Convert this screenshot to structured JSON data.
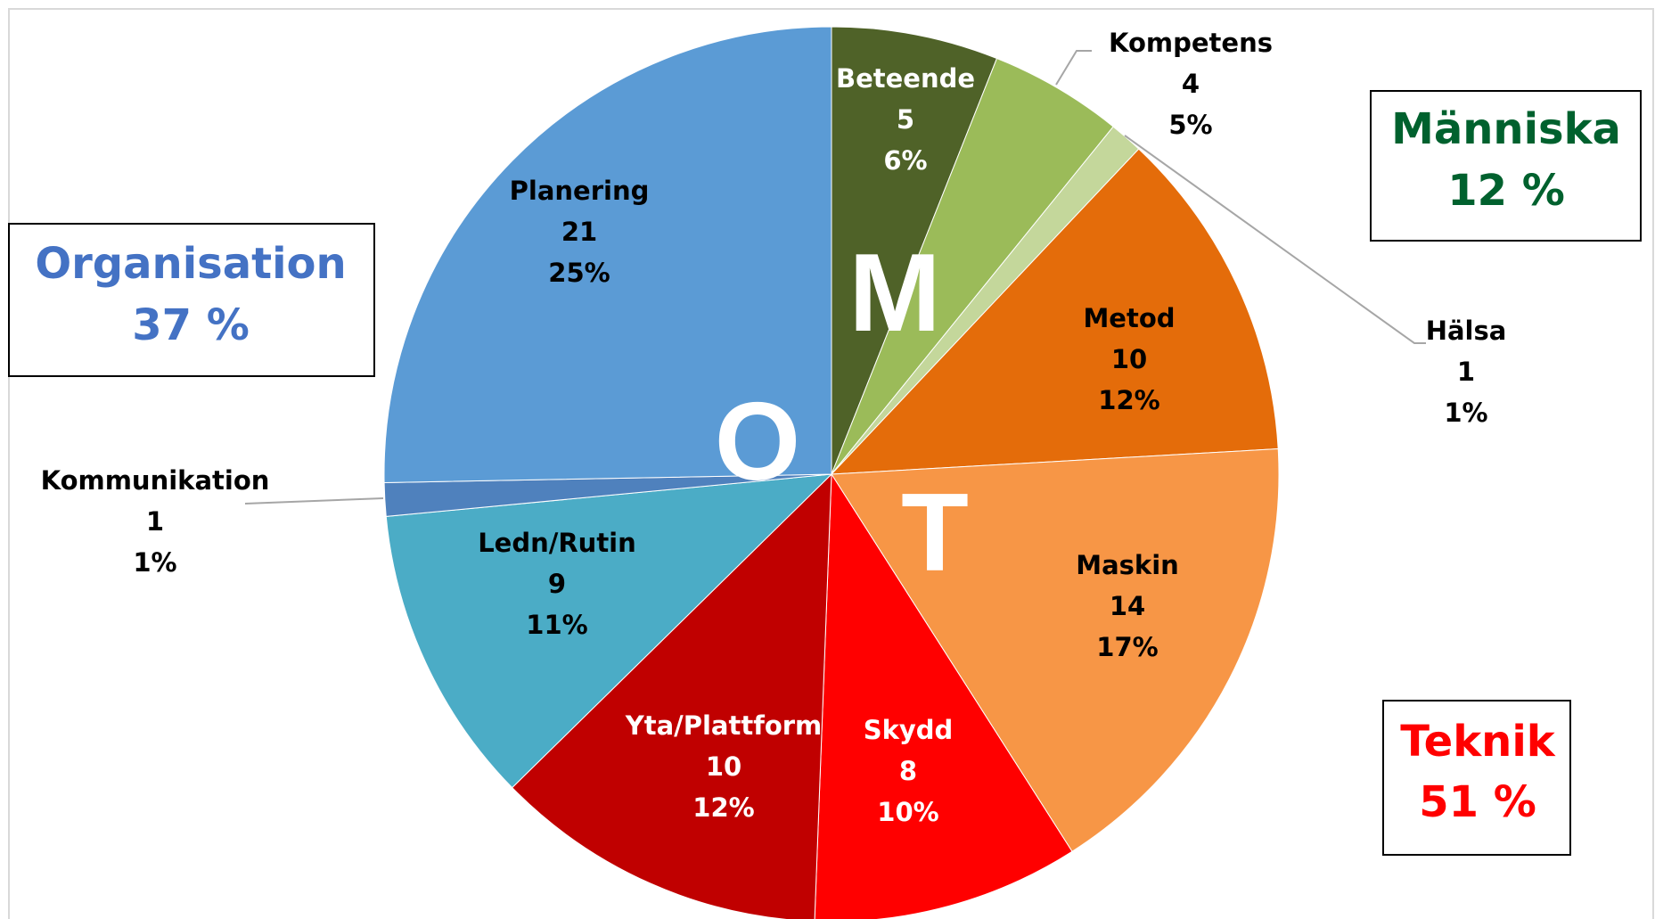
{
  "chart_data": {
    "type": "pie",
    "categories": [
      "Beteende",
      "Kompetens",
      "Hälsa",
      "Metod",
      "Maskin",
      "Skydd",
      "Yta/Plattform",
      "Ledn/Rutin",
      "Kommunikation",
      "Planering"
    ],
    "values": [
      5,
      4,
      1,
      10,
      14,
      8,
      10,
      9,
      1,
      21
    ],
    "percent_labels": [
      "6%",
      "5%",
      "1%",
      "12%",
      "17%",
      "10%",
      "12%",
      "11%",
      "1%",
      "25%"
    ],
    "colors": [
      "#4f6228",
      "#9bbb59",
      "#c4d79b",
      "#e46c0a",
      "#f79646",
      "#ff0000",
      "#c00000",
      "#4bacc6",
      "#4f81bd",
      "#5b9bd5"
    ],
    "groups": [
      {
        "name": "Organisation",
        "share": "37 %",
        "color": "#4472c4"
      },
      {
        "name": "Människa",
        "share": "12 %",
        "color": "#00612e"
      },
      {
        "name": "Teknik",
        "share": "51 %",
        "color": "#ff0000"
      }
    ],
    "letters": [
      "M",
      "O",
      "T"
    ]
  }
}
